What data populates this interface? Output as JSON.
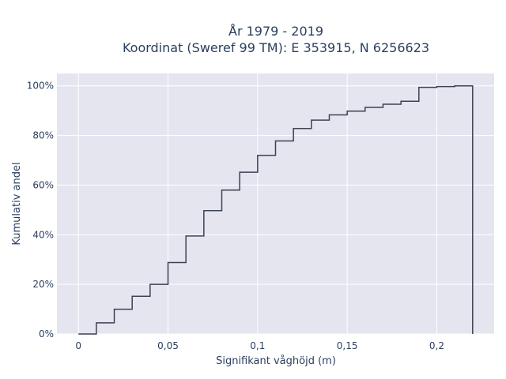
{
  "chart_data": {
    "type": "line",
    "line_shape": "step",
    "title_lines": [
      "År 1979 - 2019",
      "Koordinat (Sweref 99 TM): E 353915, N 6256623"
    ],
    "xlabel": "Signifikant våghöjd (m)",
    "ylabel": "Kumulativ andel",
    "xlim": [
      -0.012,
      0.232
    ],
    "ylim": [
      0,
      1.05
    ],
    "x_ticks": [
      {
        "value": 0,
        "label": "0"
      },
      {
        "value": 0.05,
        "label": "0,05"
      },
      {
        "value": 0.1,
        "label": "0,1"
      },
      {
        "value": 0.15,
        "label": "0,15"
      },
      {
        "value": 0.2,
        "label": "0,2"
      }
    ],
    "y_ticks": [
      {
        "value": 0,
        "label": "0%"
      },
      {
        "value": 0.2,
        "label": "20%"
      },
      {
        "value": 0.4,
        "label": "40%"
      },
      {
        "value": 0.6,
        "label": "60%"
      },
      {
        "value": 0.8,
        "label": "80%"
      },
      {
        "value": 1.0,
        "label": "100%"
      }
    ],
    "grid": true,
    "colors": {
      "line": "#3b4252",
      "plot_bg": "#e5e5f0",
      "grid": "#ffffff"
    },
    "series": [
      {
        "x": [
          0,
          0.01,
          0.02,
          0.03,
          0.04,
          0.05,
          0.06,
          0.07,
          0.08,
          0.09,
          0.1,
          0.11,
          0.12,
          0.13,
          0.14,
          0.15,
          0.16,
          0.17,
          0.18,
          0.19,
          0.2,
          0.21,
          0.22
        ],
        "y": [
          0,
          0.045,
          0.1,
          0.152,
          0.2,
          0.288,
          0.395,
          0.497,
          0.58,
          0.652,
          0.72,
          0.778,
          0.828,
          0.862,
          0.883,
          0.898,
          0.913,
          0.926,
          0.938,
          0.994,
          0.997,
          1.0,
          1.0
        ]
      }
    ]
  }
}
